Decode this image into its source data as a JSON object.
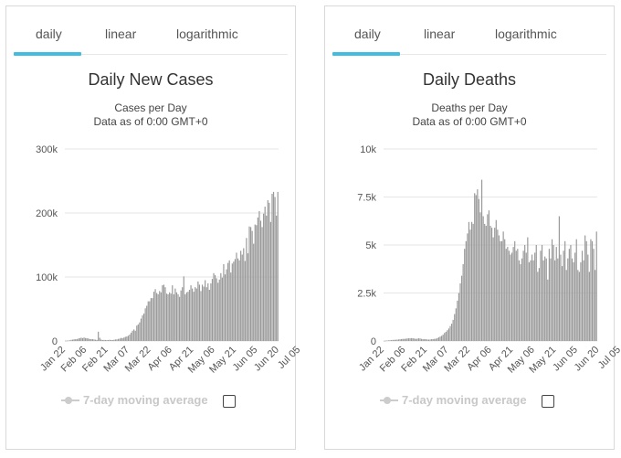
{
  "tabs": [
    "daily",
    "linear",
    "logarithmic"
  ],
  "legend_label": "7-day moving average",
  "colors": {
    "accent": "#42bde0",
    "bar": "#999999",
    "grid": "#e6e6e6",
    "legend": "#cccccc"
  },
  "chart_data": [
    {
      "type": "bar",
      "title": "Daily New Cases",
      "subtitle": "Cases per Day",
      "subtitle2": "Data as of 0:00 GMT+0",
      "ylim": [
        0,
        300000
      ],
      "yticks": [
        0,
        100000,
        200000,
        300000
      ],
      "ytick_labels": [
        "0",
        "100k",
        "200k",
        "300k"
      ],
      "xlabels": [
        "Jan 22",
        "Feb 06",
        "Feb 21",
        "Mar 07",
        "Mar 22",
        "Apr 06",
        "Apr 21",
        "May 06",
        "May 21",
        "Jun 05",
        "Jun 20",
        "Jul 05"
      ],
      "grid": true,
      "values": [
        500,
        500,
        700,
        1000,
        1800,
        2100,
        2600,
        2700,
        3000,
        3800,
        4500,
        5100,
        4500,
        5400,
        4600,
        4300,
        3900,
        3000,
        3000,
        2800,
        2500,
        2000,
        1600,
        14500,
        5000,
        2200,
        1500,
        1700,
        1500,
        1500,
        1300,
        1900,
        1500,
        1600,
        1800,
        2400,
        2500,
        3200,
        3700,
        4800,
        4300,
        5400,
        6500,
        7000,
        8200,
        10000,
        13000,
        16000,
        18000,
        16000,
        24000,
        26000,
        29000,
        35000,
        40000,
        43000,
        51000,
        55000,
        62000,
        62000,
        67000,
        67000,
        77000,
        81000,
        75000,
        73000,
        78000,
        76000,
        87000,
        88000,
        84000,
        74000,
        73000,
        76000,
        74000,
        87000,
        73000,
        82000,
        76000,
        73000,
        69000,
        79000,
        84000,
        101000,
        73000,
        76000,
        77000,
        80000,
        87000,
        82000,
        77000,
        84000,
        82000,
        93000,
        88000,
        78000,
        88000,
        85000,
        95000,
        84000,
        90000,
        80000,
        90000,
        97000,
        106000,
        103000,
        98000,
        91000,
        96000,
        106000,
        99000,
        120000,
        104000,
        112000,
        122000,
        126000,
        107000,
        121000,
        124000,
        128000,
        138000,
        129000,
        126000,
        141000,
        135000,
        145000,
        125000,
        161000,
        137000,
        179000,
        178000,
        172000,
        152000,
        182000,
        181000,
        193000,
        203000,
        188000,
        178000,
        199000,
        210000,
        196000,
        220000,
        216000,
        186000,
        230000,
        233000,
        225000,
        196000,
        233000
      ]
    },
    {
      "type": "bar",
      "title": "Daily Deaths",
      "subtitle": "Deaths per Day",
      "subtitle2": "Data as of 0:00 GMT+0",
      "ylim": [
        0,
        10000
      ],
      "yticks": [
        0,
        2500,
        5000,
        7500,
        10000
      ],
      "ytick_labels": [
        "0",
        "2.5k",
        "5k",
        "7.5k",
        "10k"
      ],
      "xlabels": [
        "Jan 22",
        "Feb 06",
        "Feb 21",
        "Mar 07",
        "Mar 22",
        "Apr 06",
        "Apr 21",
        "May 06",
        "May 21",
        "Jun 05",
        "Jun 20",
        "Jul 05"
      ],
      "grid": true,
      "values": [
        10,
        15,
        25,
        30,
        40,
        45,
        55,
        60,
        65,
        70,
        80,
        90,
        100,
        110,
        110,
        120,
        130,
        140,
        140,
        150,
        140,
        130,
        110,
        120,
        140,
        130,
        110,
        90,
        100,
        90,
        80,
        70,
        80,
        90,
        100,
        110,
        120,
        150,
        190,
        230,
        270,
        330,
        420,
        480,
        560,
        650,
        780,
        900,
        1100,
        1400,
        1700,
        2100,
        2500,
        3000,
        3400,
        4000,
        4800,
        5200,
        5600,
        6200,
        5800,
        6200,
        6100,
        7700,
        7600,
        7900,
        7400,
        6700,
        8400,
        6500,
        6100,
        6000,
        6600,
        6800,
        6000,
        5900,
        5400,
        5900,
        6300,
        5800,
        5500,
        5200,
        5200,
        5700,
        5300,
        4800,
        4900,
        4700,
        4500,
        4600,
        4900,
        5200,
        4700,
        4800,
        4200,
        4000,
        4300,
        4700,
        5000,
        4600,
        5400,
        4100,
        4200,
        4500,
        4200,
        4600,
        5000,
        3600,
        3800,
        4700,
        5000,
        4200,
        4400,
        4300,
        3200,
        4800,
        4300,
        5300,
        5000,
        4200,
        4900,
        4300,
        6500,
        4500,
        3900,
        4700,
        5200,
        3700,
        4300,
        4800,
        5000,
        4300,
        4100,
        4600,
        5300,
        3700,
        3600,
        4100,
        4700,
        4200,
        5500,
        5200,
        4500,
        3600,
        5300,
        5200,
        4800,
        3700,
        5700
      ]
    }
  ]
}
